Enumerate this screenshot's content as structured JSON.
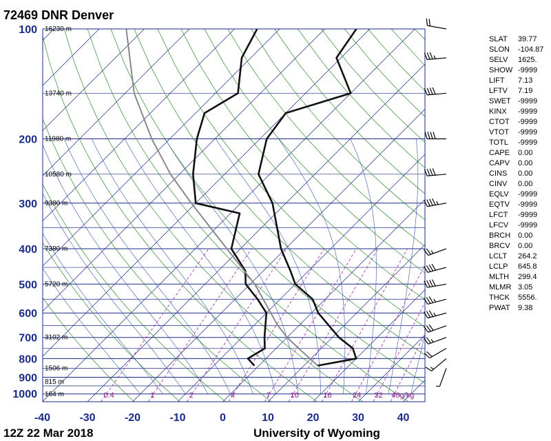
{
  "chart_data": {
    "type": "line",
    "title": "72469 DNR Denver",
    "time_label": "12Z 22 Mar 2018",
    "source_label": "University of Wyoming",
    "pressure_ticks": [
      100,
      200,
      300,
      400,
      500,
      600,
      700,
      800,
      900,
      1000
    ],
    "temperature_ticks": [
      -40,
      -30,
      -20,
      -10,
      0,
      10,
      20,
      30,
      40
    ],
    "height_labels": [
      {
        "p": 100,
        "text": "16230 m"
      },
      {
        "p": 150,
        "text": "13740 m"
      },
      {
        "p": 200,
        "text": "11980 m"
      },
      {
        "p": 250,
        "text": "10580 m"
      },
      {
        "p": 300,
        "text": "9380 m"
      },
      {
        "p": 400,
        "text": "7380 m"
      },
      {
        "p": 500,
        "text": "5720 m"
      },
      {
        "p": 700,
        "text": "3102 m"
      },
      {
        "p": 850,
        "text": "1506 m"
      },
      {
        "p": 925,
        "text": "815 m"
      },
      {
        "p": 1000,
        "text": "164 m"
      }
    ],
    "mixing_ratio_labels": [
      "0.4",
      "1",
      "2",
      "4",
      "7",
      "10",
      "16",
      "24",
      "32",
      "40g/kg"
    ],
    "series": [
      {
        "values": [
          {
            "p": 836,
            "t": 13.0
          },
          {
            "p": 800,
            "t": 20.0
          },
          {
            "p": 750,
            "t": 17.0
          },
          {
            "p": 700,
            "t": 11.5
          },
          {
            "p": 600,
            "t": 1.5
          },
          {
            "p": 550,
            "t": -2.8
          },
          {
            "p": 500,
            "t": -10.0
          },
          {
            "p": 460,
            "t": -14.0
          },
          {
            "p": 400,
            "t": -21.0
          },
          {
            "p": 300,
            "t": -33.0
          },
          {
            "p": 250,
            "t": -42.5
          },
          {
            "p": 200,
            "t": -48.5
          },
          {
            "p": 170,
            "t": -50.0
          },
          {
            "p": 150,
            "t": -40.0
          },
          {
            "p": 120,
            "t": -51.0
          },
          {
            "p": 100,
            "t": -53.0
          }
        ]
      },
      {
        "values": [
          {
            "p": 836,
            "t": -1.0
          },
          {
            "p": 800,
            "t": -4.0
          },
          {
            "p": 750,
            "t": -2.5
          },
          {
            "p": 700,
            "t": -5.0
          },
          {
            "p": 600,
            "t": -10.0
          },
          {
            "p": 550,
            "t": -15.0
          },
          {
            "p": 500,
            "t": -21.0
          },
          {
            "p": 460,
            "t": -24.0
          },
          {
            "p": 400,
            "t": -32.0
          },
          {
            "p": 320,
            "t": -38.0
          },
          {
            "p": 300,
            "t": -50.0
          },
          {
            "p": 250,
            "t": -57.0
          },
          {
            "p": 200,
            "t": -64.0
          },
          {
            "p": 170,
            "t": -68.0
          },
          {
            "p": 150,
            "t": -65.0
          },
          {
            "p": 120,
            "t": -72.0
          },
          {
            "p": 100,
            "t": -75.0
          }
        ]
      },
      {
        "values": [
          {
            "p": 836,
            "t": 13.0
          },
          {
            "p": 750,
            "t": 5.0
          },
          {
            "p": 700,
            "t": 0.0
          },
          {
            "p": 646,
            "t": -5.0
          },
          {
            "p": 600,
            "t": -9.0
          },
          {
            "p": 500,
            "t": -19.0
          },
          {
            "p": 400,
            "t": -33.0
          },
          {
            "p": 300,
            "t": -51.0
          },
          {
            "p": 250,
            "t": -62.0
          },
          {
            "p": 200,
            "t": -74.0
          },
          {
            "p": 150,
            "t": -88.0
          },
          {
            "p": 100,
            "t": -104.0
          }
        ]
      }
    ],
    "wind_barbs": [
      {
        "p": 850,
        "dir": 200,
        "kt": 5
      },
      {
        "p": 800,
        "dir": 230,
        "kt": 15
      },
      {
        "p": 750,
        "dir": 240,
        "kt": 20
      },
      {
        "p": 700,
        "dir": 250,
        "kt": 25
      },
      {
        "p": 650,
        "dir": 250,
        "kt": 30
      },
      {
        "p": 600,
        "dir": 255,
        "kt": 35
      },
      {
        "p": 550,
        "dir": 255,
        "kt": 35
      },
      {
        "p": 500,
        "dir": 260,
        "kt": 40
      },
      {
        "p": 450,
        "dir": 255,
        "kt": 40
      },
      {
        "p": 400,
        "dir": 250,
        "kt": 25
      },
      {
        "p": 300,
        "dir": 260,
        "kt": 45
      },
      {
        "p": 250,
        "dir": 265,
        "kt": 40
      },
      {
        "p": 200,
        "dir": 270,
        "kt": 40
      },
      {
        "p": 150,
        "dir": 265,
        "kt": 40
      },
      {
        "p": 120,
        "dir": 265,
        "kt": 35
      },
      {
        "p": 100,
        "dir": 280,
        "kt": 20
      }
    ]
  },
  "indices": [
    {
      "name": "SLAT",
      "value": "39.77"
    },
    {
      "name": "SLON",
      "value": "-104.87"
    },
    {
      "name": "SELV",
      "value": "1625."
    },
    {
      "name": "SHOW",
      "value": "-9999"
    },
    {
      "name": "LIFT",
      "value": "7.13"
    },
    {
      "name": "LFTV",
      "value": "7.19"
    },
    {
      "name": "SWET",
      "value": "-9999"
    },
    {
      "name": "KINX",
      "value": "-9999"
    },
    {
      "name": "CTOT",
      "value": "-9999"
    },
    {
      "name": "VTOT",
      "value": "-9999"
    },
    {
      "name": "TOTL",
      "value": "-9999"
    },
    {
      "name": "CAPE",
      "value": "0.00"
    },
    {
      "name": "CAPV",
      "value": "0.00"
    },
    {
      "name": "CINS",
      "value": "0.00"
    },
    {
      "name": "CINV",
      "value": "0.00"
    },
    {
      "name": "EQLV",
      "value": "-9999"
    },
    {
      "name": "EQTV",
      "value": "-9999"
    },
    {
      "name": "LFCT",
      "value": "-9999"
    },
    {
      "name": "LFCV",
      "value": "-9999"
    },
    {
      "name": "BRCH",
      "value": "0.00"
    },
    {
      "name": "BRCV",
      "value": "0.00"
    },
    {
      "name": "LCLT",
      "value": "264.2"
    },
    {
      "name": "LCLP",
      "value": "645.8"
    },
    {
      "name": "MLTH",
      "value": "299.4"
    },
    {
      "name": "MLMR",
      "value": "3.05"
    },
    {
      "name": "THCK",
      "value": "5556."
    },
    {
      "name": "PWAT",
      "value": "9.38"
    }
  ],
  "colors": {
    "isotherm": "#1a2a8a",
    "isobar": "#1a2a8a",
    "dry_adiabat": "#2a8a2a",
    "moist_adiabat": "#3355aa",
    "mixing_ratio": "#aa22aa",
    "profile": "#111111",
    "parcel": "#888888"
  }
}
